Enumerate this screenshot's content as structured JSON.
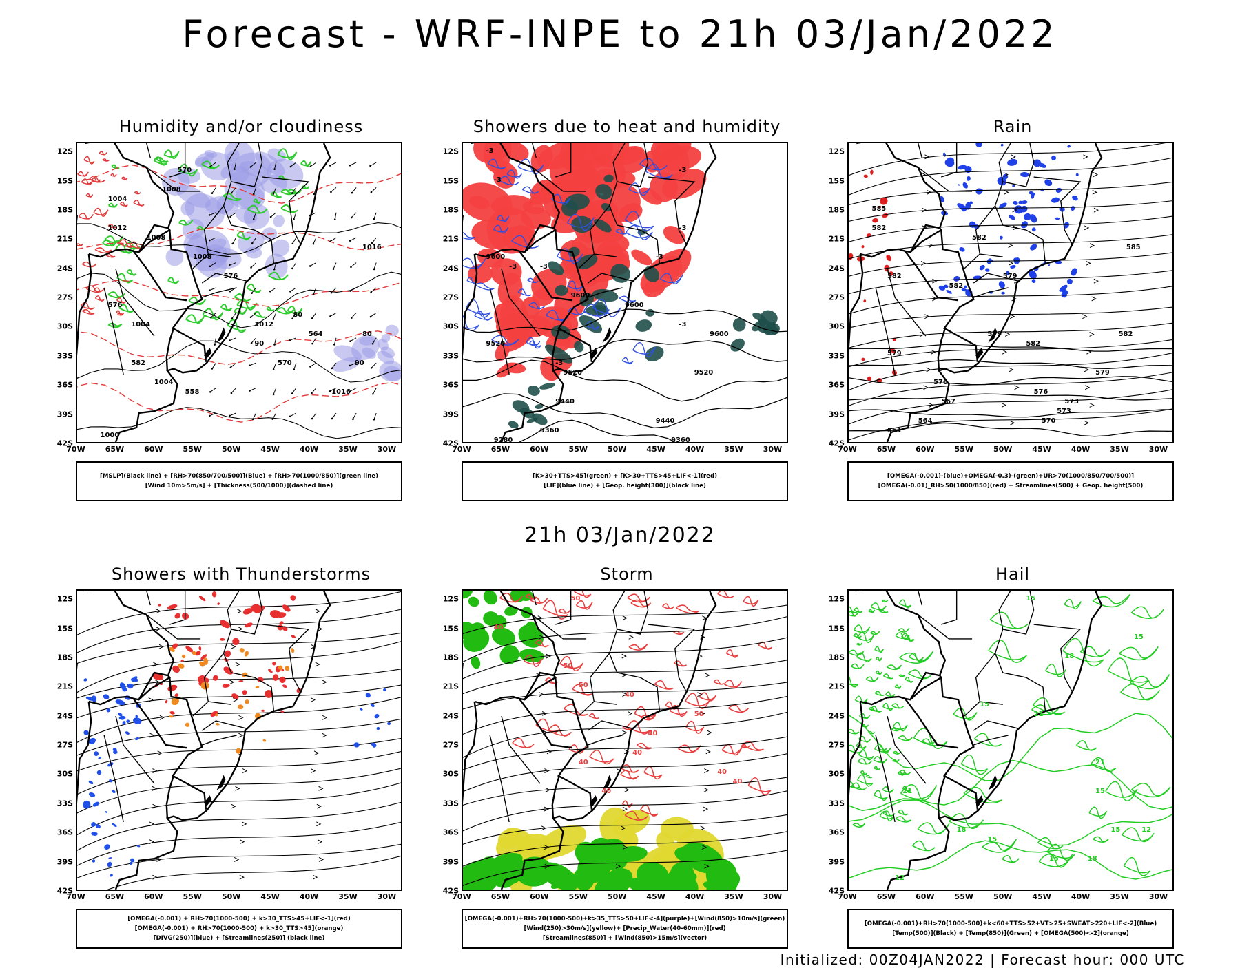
{
  "title": "Forecast - WRF-INPE to 21h 03/Jan/2022",
  "middle_title": "21h 03/Jan/2022",
  "footer": "Initialized: 00Z04JAN2022 | Forecast hour: 000 UTC",
  "axes": {
    "lat_labels": [
      "12S",
      "15S",
      "18S",
      "21S",
      "24S",
      "27S",
      "30S",
      "33S",
      "36S",
      "39S",
      "42S"
    ],
    "lon_labels": [
      "70W",
      "65W",
      "60W",
      "55W",
      "50W",
      "45W",
      "40W",
      "35W",
      "30W"
    ]
  },
  "panels": [
    {
      "title": "Humidity and/or cloudiness",
      "legend": [
        "[MSLP](Black line) + [RH>70(850/700/500)](Blue) + [RH>70(1000/850)](green line)",
        "[Wind 10m>5m/s] + [Thickness(500/1000)](dashed line)"
      ],
      "contour_labels": [
        "1008",
        "1004",
        "1012",
        "1016",
        "1004",
        "1000",
        "1008",
        "1012",
        "1016",
        "1008",
        "1004",
        "570",
        "576",
        "582",
        "564",
        "558",
        "570",
        "576",
        "80",
        "90",
        "90",
        "80"
      ],
      "colors": {
        "fill": "#9b9be6",
        "lines": "#000000",
        "green": "#2ecc2e",
        "red": "#e03a3a"
      }
    },
    {
      "title": "Showers due to heat and humidity",
      "legend": [
        "[K>30+TTS>45](green) + [K>30+TTS>45+LIF<-1](red)",
        "[LIF](blue line) + [Geop. height(300)](black line)"
      ],
      "contour_labels": [
        "9600",
        "9600",
        "9600",
        "9520",
        "9520",
        "9520",
        "9440",
        "9440",
        "9360",
        "9360",
        "9280",
        "9600",
        "-3",
        "-3",
        "-3",
        "-3",
        "-3",
        "-3",
        "-3",
        "-3",
        "-3"
      ],
      "colors": {
        "red": "#f44040",
        "green": "#1f4f4a",
        "blue": "#3050e0"
      }
    },
    {
      "title": "Rain",
      "legend": [
        "[OMEGA(-0.001)-(blue)+OMEGA(-0.3)-(green)+UR>70(1000/850/700/500)]",
        "[OMEGA(-0.01)_RH>50(1000/850)(red) + Streamlines(500) + Geop. height(500)"
      ],
      "contour_labels": [
        "585",
        "582",
        "582",
        "579",
        "582",
        "579",
        "579",
        "582",
        "579",
        "576",
        "576",
        "573",
        "573",
        "570",
        "567",
        "564",
        "561",
        "585",
        "582",
        "582"
      ],
      "colors": {
        "blue": "#2040e8",
        "red": "#e02020"
      }
    },
    {
      "title": "Showers with Thunderstorms",
      "legend": [
        "[OMEGA(-0.001) + RH>70(1000-500) + k>30_TTS>45+LIF<-1](red)",
        "[OMEGA(-0.001) + RH>70(1000-500) + k>30_TTS>45](orange)",
        "[DIVG(250)](blue) + [Streamlines(250)] (black line)"
      ],
      "contour_labels": [],
      "colors": {
        "red": "#e83030",
        "orange": "#f08a20",
        "blue": "#2050e8"
      }
    },
    {
      "title": "Storm",
      "legend": [
        "[OMEGA(-0.001)+RH>70(1000-500)+k>35_TTS>50+LIF<-4](purple)+[Wind(850)>10m/s](green)",
        "[Wind(250)>30m/s](yellow)+ [Precip_Water(40-60mm)](red)",
        "[Streamlines(850)] + [Wind(850)>15m/s](vector)"
      ],
      "contour_labels": [
        "50",
        "40",
        "50",
        "50",
        "40",
        "40",
        "50",
        "40",
        "40",
        "40",
        "40",
        "40"
      ],
      "colors": {
        "green": "#22bb11",
        "yellow": "#e0d830",
        "red": "#e84040"
      }
    },
    {
      "title": "Hail",
      "legend": [
        "[OMEGA(-0.001)+RH>70(1000-500)+k<60+TTS>52+VT>25+SWEAT>220+LIF<-2](Blue)",
        "[Temp(500)](Black) + [Temp(850)](Green) + [OMEGA(500)<-2](orange)"
      ],
      "contour_labels": [
        "15",
        "15",
        "18",
        "21",
        "21",
        "15",
        "21",
        "18",
        "15",
        "18",
        "15",
        "12",
        "15",
        "12",
        "15"
      ],
      "colors": {
        "green": "#22cc22"
      }
    }
  ]
}
